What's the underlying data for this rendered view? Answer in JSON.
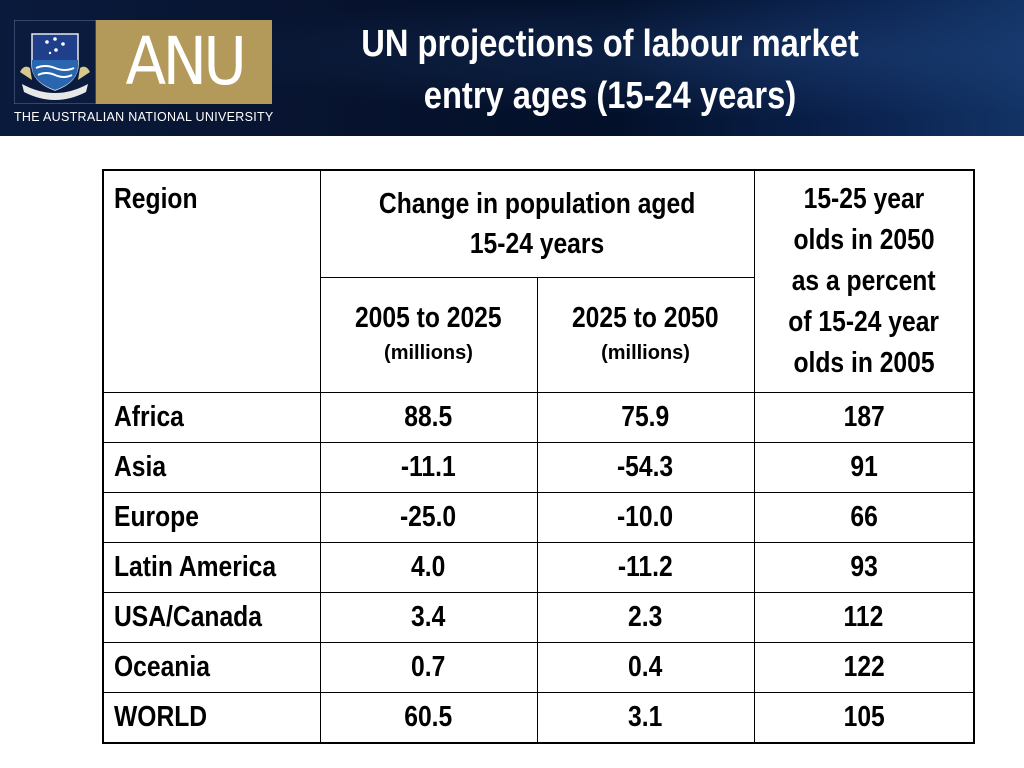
{
  "header": {
    "title_line1": "UN projections of labour market",
    "title_line2": "entry ages (15-24 years)",
    "logo": {
      "wordmark": "ANU",
      "university_name": "THE AUSTRALIAN NATIONAL UNIVERSITY",
      "crest_icon": "anu-crest-icon",
      "brand_color": "#b39a5a"
    }
  },
  "table": {
    "col_region": "Region",
    "col_change_line1": "Change in population aged",
    "col_change_line2": "15-24 years",
    "col_period1": "2005 to 2025",
    "col_period1_units": "(millions)",
    "col_period2": "2025 to 2050",
    "col_period2_units": "(millions)",
    "col_pct_lines": [
      "15-25 year",
      "olds in 2050",
      "as a percent",
      "of 15-24 year",
      "olds in 2005"
    ],
    "rows": [
      {
        "region": "Africa",
        "change_2005_2025": "88.5",
        "change_2025_2050": "75.9",
        "pct_2050_vs_2005": "187"
      },
      {
        "region": "Asia",
        "change_2005_2025": "-11.1",
        "change_2025_2050": "-54.3",
        "pct_2050_vs_2005": "91"
      },
      {
        "region": "Europe",
        "change_2005_2025": "-25.0",
        "change_2025_2050": "-10.0",
        "pct_2050_vs_2005": "66"
      },
      {
        "region": "Latin America",
        "change_2005_2025": "4.0",
        "change_2025_2050": "-11.2",
        "pct_2050_vs_2005": "93"
      },
      {
        "region": "USA/Canada",
        "change_2005_2025": "3.4",
        "change_2025_2050": "2.3",
        "pct_2050_vs_2005": "112"
      },
      {
        "region": "Oceania",
        "change_2005_2025": "0.7",
        "change_2025_2050": "0.4",
        "pct_2050_vs_2005": "122"
      },
      {
        "region": "WORLD",
        "change_2005_2025": "60.5",
        "change_2025_2050": "3.1",
        "pct_2050_vs_2005": "105"
      }
    ]
  }
}
